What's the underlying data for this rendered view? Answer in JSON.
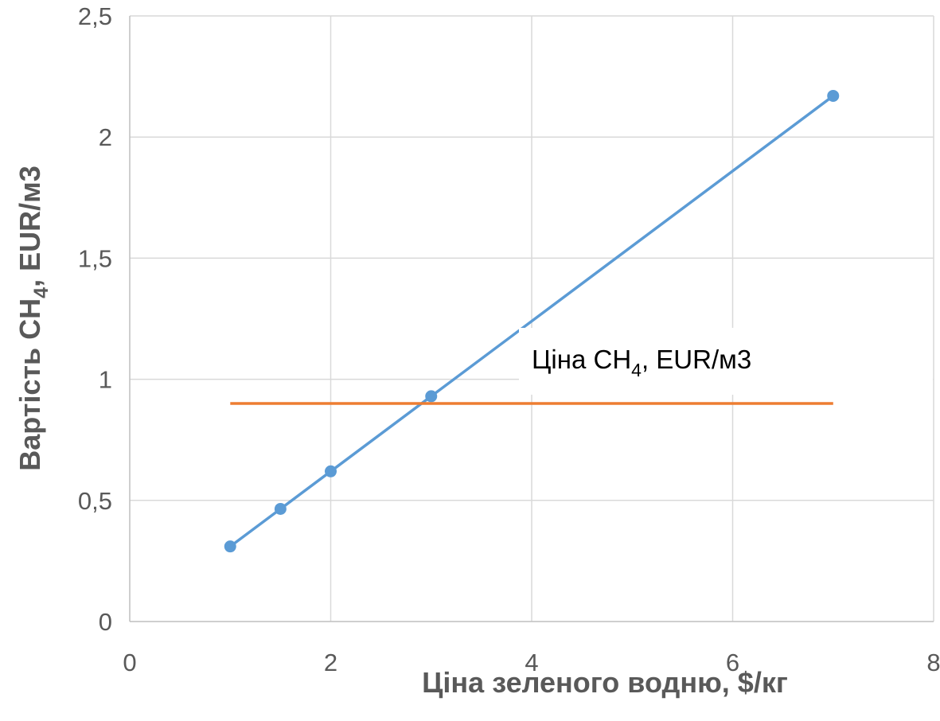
{
  "chart_data": {
    "type": "scatter",
    "title": "",
    "xlabel": "Ціна зеленого водню, $/кг",
    "ylabel": {
      "main": "Вартість CH",
      "sub": "4",
      "tail": ", EUR/м3"
    },
    "xlim": [
      0,
      8
    ],
    "ylim": [
      0,
      2.5
    ],
    "x_ticks": [
      0,
      2,
      4,
      6,
      8
    ],
    "x_tick_labels": [
      "0",
      "2",
      "4",
      "6",
      "8"
    ],
    "y_ticks": [
      0,
      0.5,
      1,
      1.5,
      2,
      2.5
    ],
    "y_tick_labels": [
      "0",
      "0,5",
      "1",
      "1,5",
      "2",
      "2,5"
    ],
    "grid": true,
    "series": [
      {
        "style": "line-markers",
        "color": "#5B9BD5",
        "x": [
          1,
          1.5,
          2,
          3,
          7
        ],
        "y": [
          0.31,
          0.465,
          0.62,
          0.93,
          2.17
        ]
      },
      {
        "style": "line",
        "color": "#ED7D31",
        "x": [
          1,
          7
        ],
        "y": [
          0.9,
          0.9
        ]
      }
    ],
    "annotation": {
      "main": "Ціна CH",
      "sub": "4",
      "tail": ", EUR/м3"
    }
  }
}
